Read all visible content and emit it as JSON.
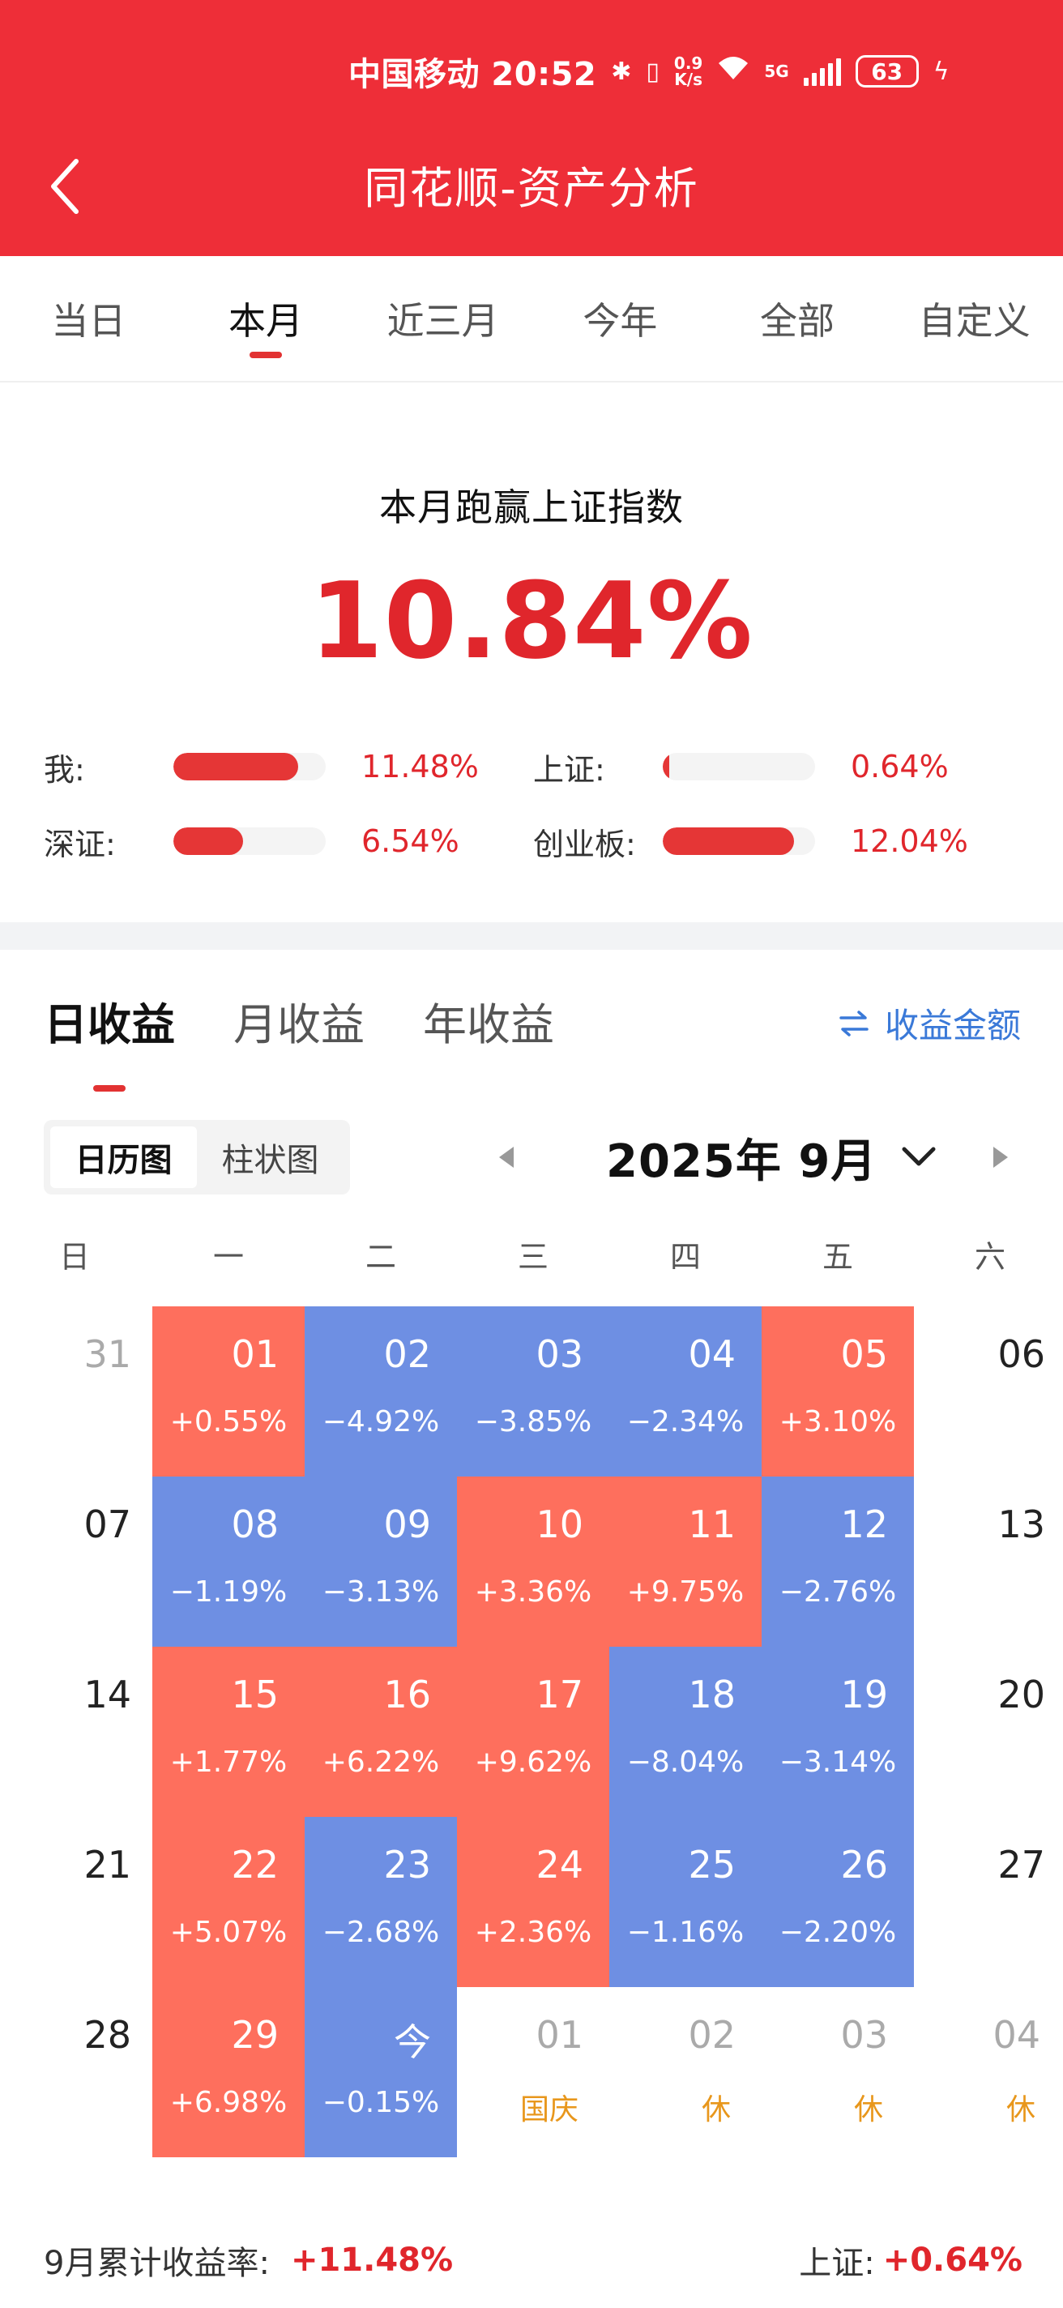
{
  "status_bar": {
    "carrier_time": "中国移动 20:52",
    "speed": "0.9\nK/s",
    "net": "5G",
    "battery": "63"
  },
  "nav": {
    "title": "同花顺-资产分析"
  },
  "period_tabs": [
    {
      "label": "当日"
    },
    {
      "label": "本月"
    },
    {
      "label": "近三月"
    },
    {
      "label": "今年"
    },
    {
      "label": "全部"
    },
    {
      "label": "自定义"
    }
  ],
  "active_period": "本月",
  "summary": {
    "title": "本月跑赢上证指数",
    "value": "10.84%",
    "comparisons": [
      {
        "label": "我:",
        "value": "11.48%",
        "fill": 0.82
      },
      {
        "label": "上证:",
        "value": "0.64%",
        "fill": 0.045
      },
      {
        "label": "深证:",
        "value": "6.54%",
        "fill": 0.46
      },
      {
        "label": "创业板:",
        "value": "12.04%",
        "fill": 0.86
      }
    ]
  },
  "earn_tabs": [
    {
      "label": "日收益"
    },
    {
      "label": "月收益"
    },
    {
      "label": "年收益"
    }
  ],
  "amount_toggle": {
    "icon": "swap-icon",
    "label": "收益金额"
  },
  "view_toggle": [
    {
      "label": "日历图"
    },
    {
      "label": "柱状图"
    }
  ],
  "month_nav": {
    "label": "2025年 9月"
  },
  "weekdays": [
    "日",
    "一",
    "二",
    "三",
    "四",
    "五",
    "六"
  ],
  "calendar": [
    [
      {
        "day": "31",
        "type": "prev"
      },
      {
        "day": "01",
        "pct": "+0.55%",
        "type": "up"
      },
      {
        "day": "02",
        "pct": "−4.92%",
        "type": "down"
      },
      {
        "day": "03",
        "pct": "−3.85%",
        "type": "down"
      },
      {
        "day": "04",
        "pct": "−2.34%",
        "type": "down"
      },
      {
        "day": "05",
        "pct": "+3.10%",
        "type": "up"
      },
      {
        "day": "06",
        "type": "weekend"
      }
    ],
    [
      {
        "day": "07",
        "type": "weekend"
      },
      {
        "day": "08",
        "pct": "−1.19%",
        "type": "down"
      },
      {
        "day": "09",
        "pct": "−3.13%",
        "type": "down"
      },
      {
        "day": "10",
        "pct": "+3.36%",
        "type": "up"
      },
      {
        "day": "11",
        "pct": "+9.75%",
        "type": "up"
      },
      {
        "day": "12",
        "pct": "−2.76%",
        "type": "down"
      },
      {
        "day": "13",
        "type": "weekend"
      }
    ],
    [
      {
        "day": "14",
        "type": "weekend"
      },
      {
        "day": "15",
        "pct": "+1.77%",
        "type": "up"
      },
      {
        "day": "16",
        "pct": "+6.22%",
        "type": "up"
      },
      {
        "day": "17",
        "pct": "+9.62%",
        "type": "up"
      },
      {
        "day": "18",
        "pct": "−8.04%",
        "type": "down"
      },
      {
        "day": "19",
        "pct": "−3.14%",
        "type": "down"
      },
      {
        "day": "20",
        "type": "weekend"
      }
    ],
    [
      {
        "day": "21",
        "type": "weekend"
      },
      {
        "day": "22",
        "pct": "+5.07%",
        "type": "up"
      },
      {
        "day": "23",
        "pct": "−2.68%",
        "type": "down"
      },
      {
        "day": "24",
        "pct": "+2.36%",
        "type": "up"
      },
      {
        "day": "25",
        "pct": "−1.16%",
        "type": "down"
      },
      {
        "day": "26",
        "pct": "−2.20%",
        "type": "down"
      },
      {
        "day": "27",
        "type": "weekend"
      }
    ],
    [
      {
        "day": "28",
        "type": "weekend"
      },
      {
        "day": "29",
        "pct": "+6.98%",
        "type": "up"
      },
      {
        "day": "今",
        "pct": "−0.15%",
        "type": "down"
      },
      {
        "day": "01",
        "pct": "国庆",
        "type": "next"
      },
      {
        "day": "02",
        "pct": "休",
        "type": "next"
      },
      {
        "day": "03",
        "pct": "休",
        "type": "next"
      },
      {
        "day": "04",
        "pct": "休",
        "type": "next"
      }
    ]
  ],
  "footer": {
    "cum_label": "9月累计收益率:",
    "cum_value": "+11.48%",
    "index_label": "上证:",
    "index_value": "+0.64%"
  },
  "colors": {
    "brand_red": "#ee2e38",
    "up_cell": "#fe6f5d",
    "down_cell": "#6e8fe3",
    "holiday_text": "#e8971c",
    "link_blue": "#3a79d8"
  }
}
